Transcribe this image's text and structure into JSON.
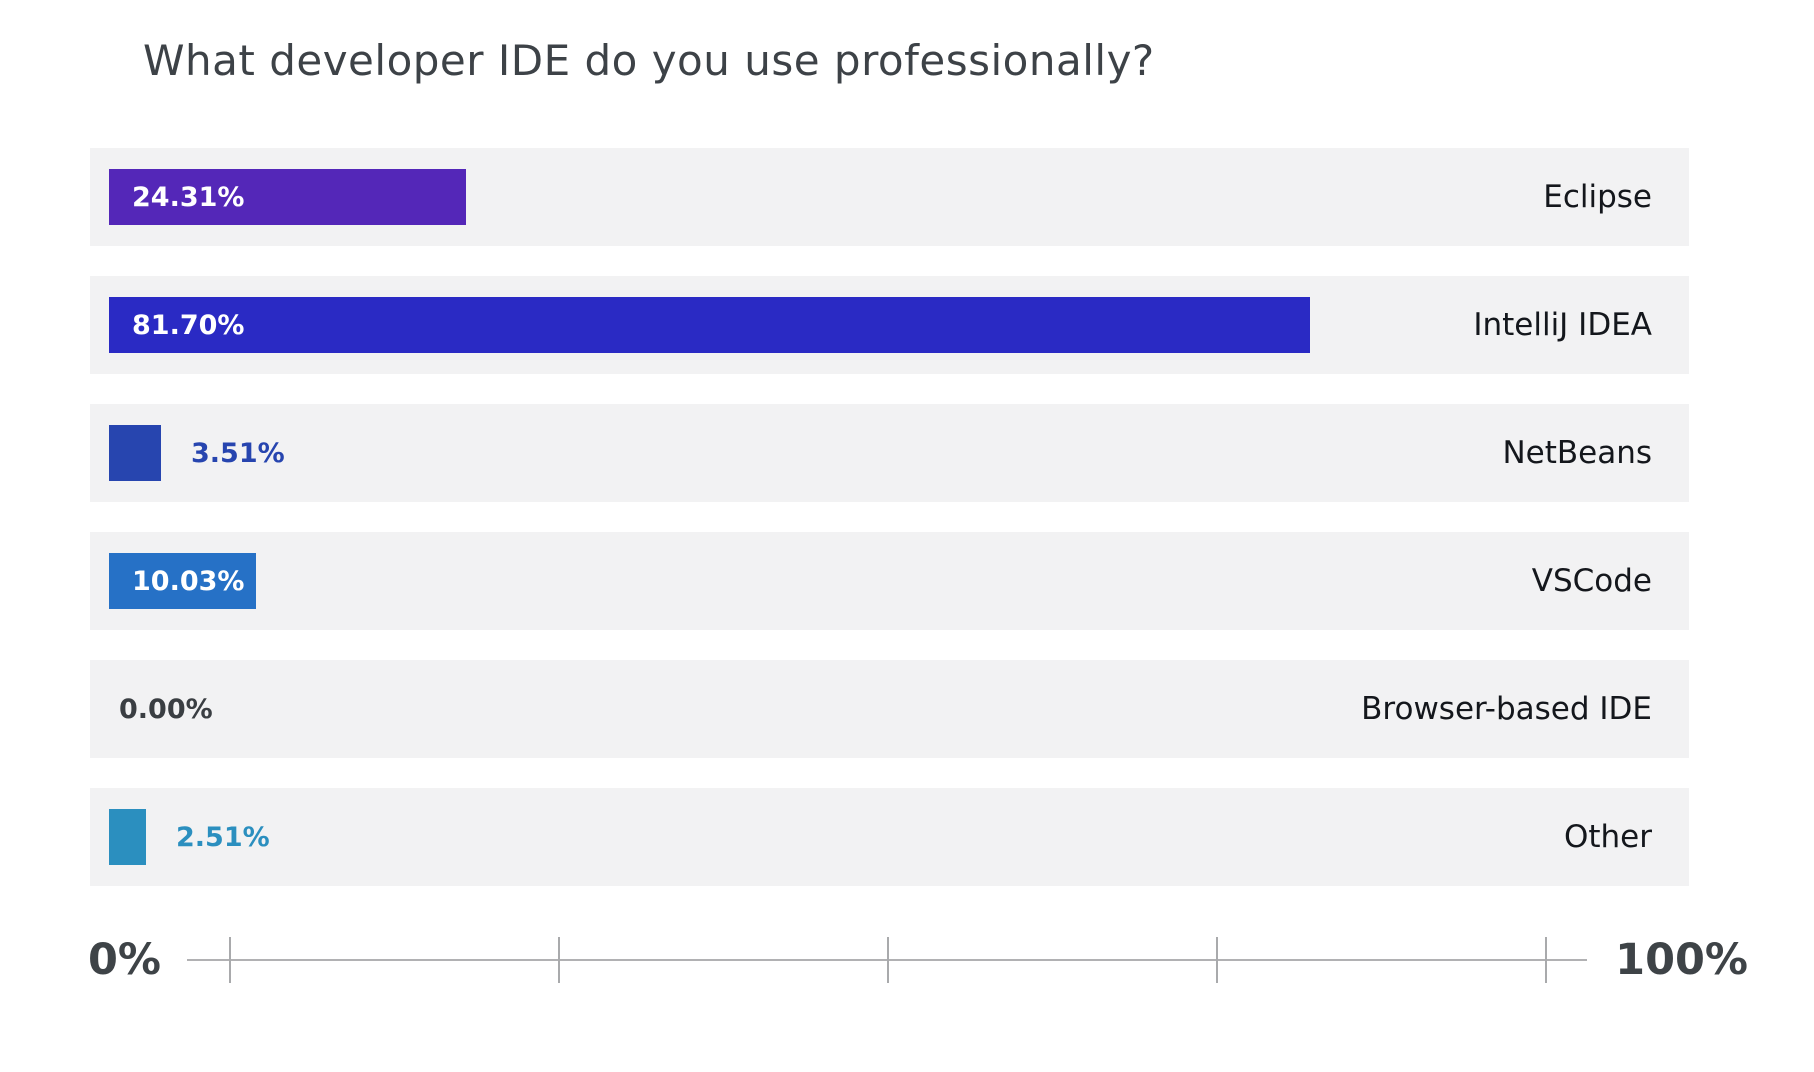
{
  "title": "What developer IDE do you use professionally?",
  "axis": {
    "min_label": "0%",
    "max_label": "100%"
  },
  "colors": {
    "row_background": "#f2f2f3",
    "title_text": "#3d4247",
    "category_text": "#14171c",
    "axis_text": "#3e4347",
    "axis_line": "#b1b1b3",
    "zero_label_text": "#3a3e42"
  },
  "chart_data": {
    "type": "bar",
    "orientation": "horizontal",
    "title": "What developer IDE do you use professionally?",
    "categories": [
      "Eclipse",
      "IntelliJ IDEA",
      "NetBeans",
      "VSCode",
      "Browser-based IDE",
      "Other"
    ],
    "values": [
      24.31,
      81.7,
      3.51,
      10.03,
      0.0,
      2.51
    ],
    "value_labels": [
      "24.31%",
      "81.70%",
      "3.51%",
      "10.03%",
      "0.00%",
      "2.51%"
    ],
    "bar_colors": [
      "#5427b8",
      "#2a2ac4",
      "#2745af",
      "#2671c6",
      "#f2f2f3",
      "#2b8fbf"
    ],
    "xlabel": "",
    "ylabel": "",
    "xlim": [
      0,
      100
    ],
    "x_axis_tick_labels_visible": [
      "0%",
      "100%"
    ],
    "x_axis_interior_tick_count": 5,
    "grid": false,
    "legend": false,
    "value_label_position_rule": "inside-bar when large, right of bar when small, at origin when zero"
  }
}
